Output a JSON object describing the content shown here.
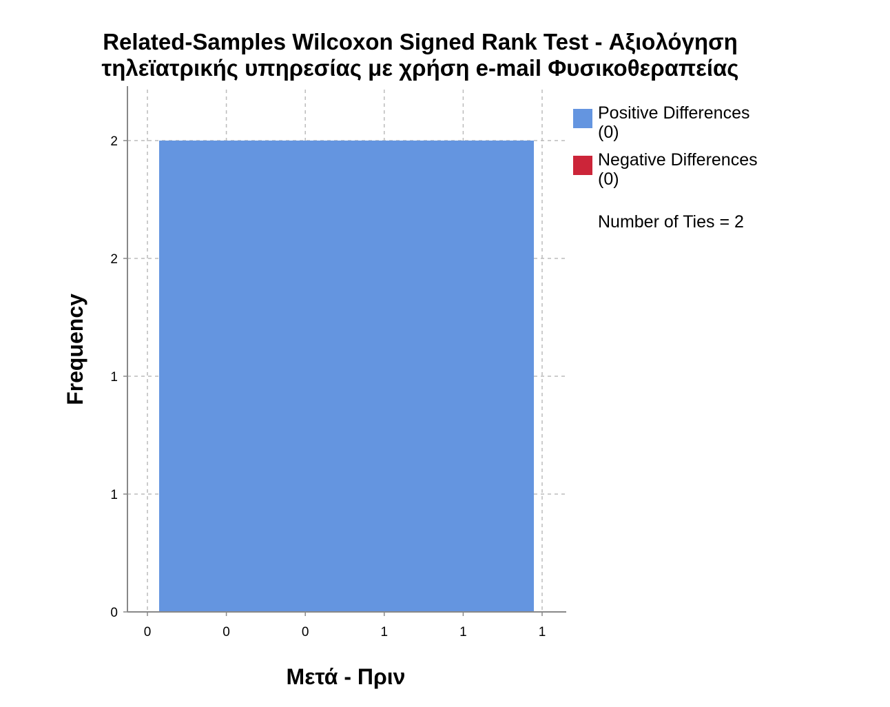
{
  "chart_data": {
    "type": "bar",
    "title_line1": "Related-Samples Wilcoxon Signed Rank Test - Αξιολόγηση",
    "title_line2": "τηλεϊατρικής υπηρεσίας με χρήση e-mail Φυσικοθεραπείας",
    "xlabel": "Μετά - Πριν",
    "ylabel": "Frequency",
    "x_tick_labels": [
      "0",
      "0",
      "0",
      "1",
      "1",
      "1"
    ],
    "y_tick_labels": [
      "0",
      "1",
      "1",
      "2",
      "2"
    ],
    "ylim": [
      0,
      2.4
    ],
    "grid": true,
    "bars": [
      {
        "series": "Positive Differences",
        "x_start": -0.05,
        "x_end": 0.95,
        "value": 2
      }
    ],
    "series": [
      {
        "name": "Positive Differences",
        "count_label": "(0)",
        "color": "#6495e0"
      },
      {
        "name": "Negative Differences",
        "count_label": "(0)",
        "color": "#cc2539"
      }
    ],
    "legend_note": "Number of Ties = 2",
    "legend_position": "right"
  }
}
